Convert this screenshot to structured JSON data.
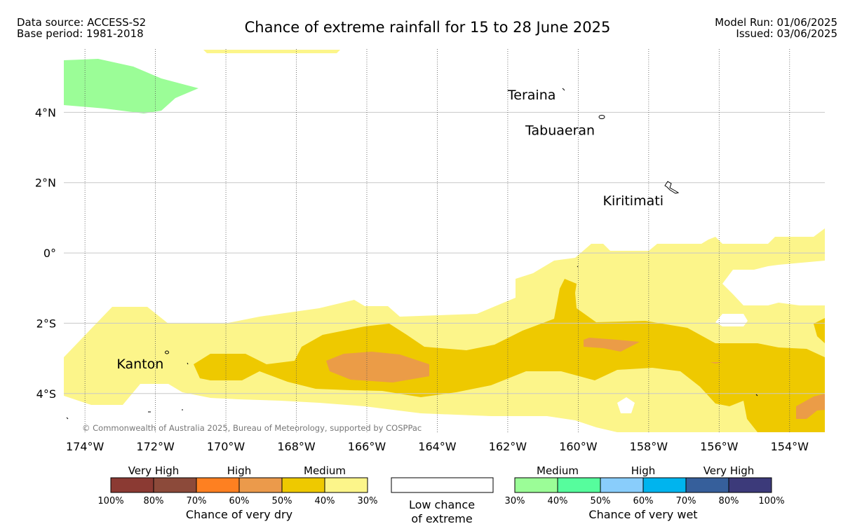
{
  "header": {
    "data_source": "Data source: ACCESS-S2",
    "base_period": "Base period: 1981-2018",
    "title": "Chance of extreme rainfall for 15 to 28 June 2025",
    "model_run": "Model Run: 01/06/2025",
    "issued": "Issued: 03/06/2025"
  },
  "map": {
    "lon_range": [
      -174.6,
      -153.0
    ],
    "lat_range": [
      -5.1,
      5.8
    ],
    "lon_ticks": [
      {
        "value": -174,
        "label": "174°W"
      },
      {
        "value": -172,
        "label": "172°W"
      },
      {
        "value": -170,
        "label": "170°W"
      },
      {
        "value": -168,
        "label": "168°W"
      },
      {
        "value": -166,
        "label": "166°W"
      },
      {
        "value": -164,
        "label": "164°W"
      },
      {
        "value": -162,
        "label": "162°W"
      },
      {
        "value": -160,
        "label": "160°W"
      },
      {
        "value": -158,
        "label": "158°W"
      },
      {
        "value": -156,
        "label": "156°W"
      },
      {
        "value": -154,
        "label": "154°W"
      }
    ],
    "lat_ticks": [
      {
        "value": 4,
        "label": "4°N"
      },
      {
        "value": 2,
        "label": "2°N"
      },
      {
        "value": 0,
        "label": "0°"
      },
      {
        "value": -2,
        "label": "2°S"
      },
      {
        "value": -4,
        "label": "4°S"
      }
    ],
    "places": [
      {
        "name": "Teraina",
        "lon": -162.0,
        "lat": 4.5
      },
      {
        "name": "Tabuaeran",
        "lon": -161.5,
        "lat": 3.5
      },
      {
        "name": "Kiritimati",
        "lon": -159.3,
        "lat": 1.5
      },
      {
        "name": "Kanton",
        "lon": -173.1,
        "lat": -3.15
      }
    ],
    "copyright": "© Commonwealth of Australia 2025, Bureau of Meteorology, supported by COSPPac",
    "colors": {
      "dry_medium_40": "#eec900",
      "dry_medium_30": "#fcf58a",
      "dry_high_60": "#eb9c47",
      "wet_medium_30": "#9bfd97"
    }
  },
  "legend": {
    "dry": {
      "groups": [
        "Very High",
        "High",
        "Medium"
      ],
      "colors": [
        "#8b3a33",
        "#8c4a3a",
        "#fe8021",
        "#eb9a4b",
        "#eec900",
        "#fcf58a"
      ],
      "ticks": [
        "100%",
        "80%",
        "70%",
        "60%",
        "50%",
        "40%",
        "30%"
      ],
      "caption": "Chance of very dry"
    },
    "low": {
      "color": "#ffffff",
      "caption_line1": "Low chance",
      "caption_line2": "of extreme"
    },
    "wet": {
      "groups": [
        "Medium",
        "High",
        "Very High"
      ],
      "colors": [
        "#9bfd97",
        "#56fd9d",
        "#89cdfb",
        "#00b4ee",
        "#365f9b",
        "#3c3a7a"
      ],
      "ticks": [
        "30%",
        "40%",
        "50%",
        "60%",
        "70%",
        "80%",
        "100%"
      ],
      "caption": "Chance of very wet"
    }
  }
}
